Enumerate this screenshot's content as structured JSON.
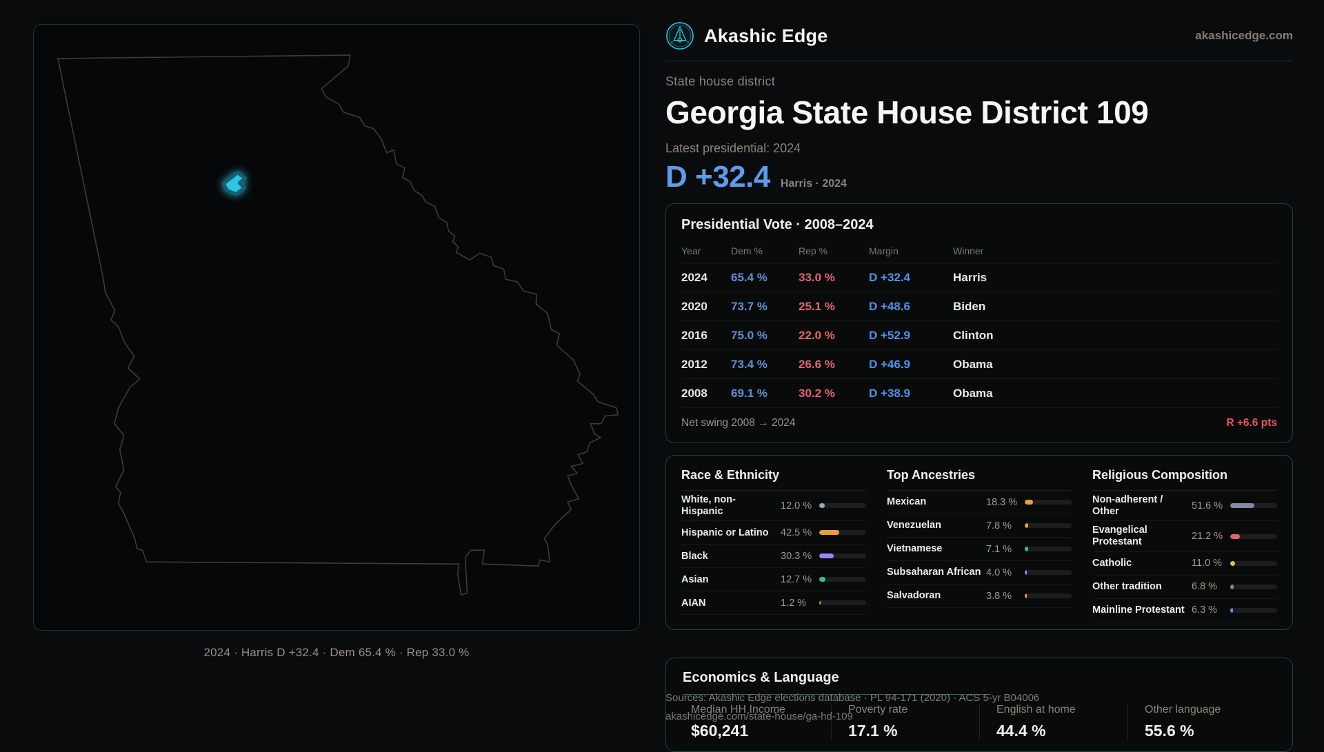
{
  "brand": {
    "name": "Akashic Edge",
    "domain": "akashicedge.com"
  },
  "page": {
    "kicker": "State house district",
    "title": "Georgia State House District 109",
    "latest_label": "Latest presidential: 2024",
    "headline_margin": "D +32.4",
    "headline_context": "Harris · 2024"
  },
  "map": {
    "caption": "2024 · Harris D +32.4 · Dem 65.4 % · Rep 33.0 %"
  },
  "colors": {
    "accent_cyan": "#2fc4e6",
    "dem_blue": "#4c94ea",
    "rep_red": "#e5646e",
    "swing_red": "#f0545d"
  },
  "presidential": {
    "title": "Presidential Vote · 2008–2024",
    "columns": [
      "Year",
      "Dem %",
      "Rep %",
      "Margin",
      "Winner"
    ],
    "rows": [
      {
        "year": "2024",
        "dem": "65.4 %",
        "rep": "33.0 %",
        "margin": "D +32.4",
        "winner": "Harris"
      },
      {
        "year": "2020",
        "dem": "73.7 %",
        "rep": "25.1 %",
        "margin": "D +48.6",
        "winner": "Biden"
      },
      {
        "year": "2016",
        "dem": "75.0 %",
        "rep": "22.0 %",
        "margin": "D +52.9",
        "winner": "Clinton"
      },
      {
        "year": "2012",
        "dem": "73.4 %",
        "rep": "26.6 %",
        "margin": "D +46.9",
        "winner": "Obama"
      },
      {
        "year": "2008",
        "dem": "69.1 %",
        "rep": "30.2 %",
        "margin": "D +38.9",
        "winner": "Obama"
      }
    ],
    "net_swing_label": "Net swing 2008 → 2024",
    "net_swing_value": "R +6.6 pts"
  },
  "chart_data": [
    {
      "type": "table",
      "title": "Presidential Vote · 2008–2024",
      "columns": [
        "Year",
        "Dem %",
        "Rep %",
        "Margin",
        "Winner"
      ],
      "rows": [
        [
          "2024",
          65.4,
          33.0,
          "D +32.4",
          "Harris"
        ],
        [
          "2020",
          73.7,
          25.1,
          "D +48.6",
          "Biden"
        ],
        [
          "2016",
          75.0,
          22.0,
          "D +52.9",
          "Clinton"
        ],
        [
          "2012",
          73.4,
          26.6,
          "D +46.9",
          "Obama"
        ],
        [
          "2008",
          69.1,
          30.2,
          "D +38.9",
          "Obama"
        ]
      ],
      "footnote": "Net swing 2008 → 2024: R +6.6 pts"
    },
    {
      "type": "bar",
      "title": "Race & Ethnicity",
      "categories": [
        "White, non-Hispanic",
        "Hispanic or Latino",
        "Black",
        "Asian",
        "AIAN"
      ],
      "values": [
        12.0,
        42.5,
        30.3,
        12.7,
        1.2
      ],
      "xlim": [
        0,
        100
      ],
      "unit": "%"
    },
    {
      "type": "bar",
      "title": "Top Ancestries",
      "categories": [
        "Mexican",
        "Venezuelan",
        "Vietnamese",
        "Subsaharan African",
        "Salvadoran"
      ],
      "values": [
        18.3,
        7.8,
        7.1,
        4.0,
        3.8
      ],
      "xlim": [
        0,
        100
      ],
      "unit": "%"
    },
    {
      "type": "bar",
      "title": "Religious Composition",
      "categories": [
        "Non-adherent / Other",
        "Evangelical Protestant",
        "Catholic",
        "Other tradition",
        "Mainline Protestant"
      ],
      "values": [
        51.6,
        21.2,
        11.0,
        6.8,
        6.3
      ],
      "xlim": [
        0,
        100
      ],
      "unit": "%"
    }
  ],
  "demographics": {
    "race": {
      "title": "Race & Ethnicity",
      "items": [
        {
          "label": "White, non-Hispanic",
          "value": "12.0 %",
          "pct": 12.0,
          "color": "#96a7c8"
        },
        {
          "label": "Hispanic or Latino",
          "value": "42.5 %",
          "pct": 42.5,
          "color": "#e59f3c"
        },
        {
          "label": "Black",
          "value": "30.3 %",
          "pct": 30.3,
          "color": "#9a86ec"
        },
        {
          "label": "Asian",
          "value": "12.7 %",
          "pct": 12.7,
          "color": "#33bf96"
        },
        {
          "label": "AIAN",
          "value": "1.2 %",
          "pct": 1.2,
          "color": "#e59f3c"
        }
      ]
    },
    "ancestries": {
      "title": "Top Ancestries",
      "items": [
        {
          "label": "Mexican",
          "value": "18.3 %",
          "pct": 18.3,
          "color": "#e59f3c"
        },
        {
          "label": "Venezuelan",
          "value": "7.8 %",
          "pct": 7.8,
          "color": "#e59f3c"
        },
        {
          "label": "Vietnamese",
          "value": "7.1 %",
          "pct": 7.1,
          "color": "#33bf96"
        },
        {
          "label": "Subsaharan African",
          "value": "4.0 %",
          "pct": 4.0,
          "color": "#9a86ec"
        },
        {
          "label": "Salvadoran",
          "value": "3.8 %",
          "pct": 3.8,
          "color": "#e59f3c"
        }
      ]
    },
    "religion": {
      "title": "Religious Composition",
      "items": [
        {
          "label": "Non-adherent / Other",
          "value": "51.6 %",
          "pct": 51.6,
          "color": "#7d8aa6"
        },
        {
          "label": "Evangelical Protestant",
          "value": "21.2 %",
          "pct": 21.2,
          "color": "#e0656e"
        },
        {
          "label": "Catholic",
          "value": "11.0 %",
          "pct": 11.0,
          "color": "#e6c23a"
        },
        {
          "label": "Other tradition",
          "value": "6.8 %",
          "pct": 6.8,
          "color": "#8a8a8a"
        },
        {
          "label": "Mainline Protestant",
          "value": "6.3 %",
          "pct": 6.3,
          "color": "#4d94e8"
        }
      ]
    }
  },
  "economics": {
    "title": "Economics & Language",
    "stats": [
      {
        "label": "Median HH Income",
        "value": "$60,241"
      },
      {
        "label": "Poverty rate",
        "value": "17.1 %"
      },
      {
        "label": "English at home",
        "value": "44.4 %"
      },
      {
        "label": "Other language",
        "value": "55.6 %"
      }
    ]
  },
  "footer": {
    "sources_line": "Sources: Akashic Edge elections database · PL 94-171 (2020) · ACS 5-yr B04006",
    "permalink": "akashicedge.com/state-house/ga-hd-109"
  }
}
